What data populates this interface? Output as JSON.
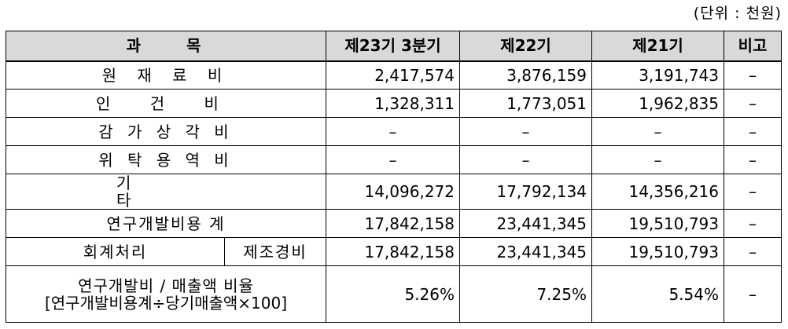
{
  "unit_note": "(단위 : 천원)",
  "table": {
    "headers": [
      "과　　목",
      "제23기 3분기",
      "제22기",
      "제21기",
      "비고"
    ],
    "rows": [
      {
        "label": "원 재 료 비",
        "values": [
          "2,417,574",
          "3,876,159",
          "3,191,743"
        ],
        "note": "–"
      },
      {
        "label": "인 건 비",
        "values": [
          "1,328,311",
          "1,773,051",
          "1,962,835"
        ],
        "note": "–"
      },
      {
        "label": "감 가 상 각 비",
        "values": [
          "–",
          "–",
          "–"
        ],
        "note": "–"
      },
      {
        "label": "위 탁 용 역 비",
        "values": [
          "–",
          "–",
          "–"
        ],
        "note": "–"
      },
      {
        "label_left": "기",
        "label_right": "타",
        "values": [
          "14,096,272",
          "17,792,134",
          "14,356,216"
        ],
        "note": "–"
      },
      {
        "label": "연구개발비용 계",
        "values": [
          "17,842,158",
          "23,441,345",
          "19,510,793"
        ],
        "note": "–"
      },
      {
        "label": "회계처리",
        "sub_label": "제조경비",
        "values": [
          "17,842,158",
          "23,441,345",
          "19,510,793"
        ],
        "note": "–"
      }
    ],
    "ratio_row": {
      "label_line1": "연구개발비 / 매출액 비율",
      "label_line2": "[연구개발비용계÷당기매출액×100]",
      "values": [
        "5.26%",
        "7.25%",
        "5.54%"
      ],
      "note": "–"
    }
  }
}
